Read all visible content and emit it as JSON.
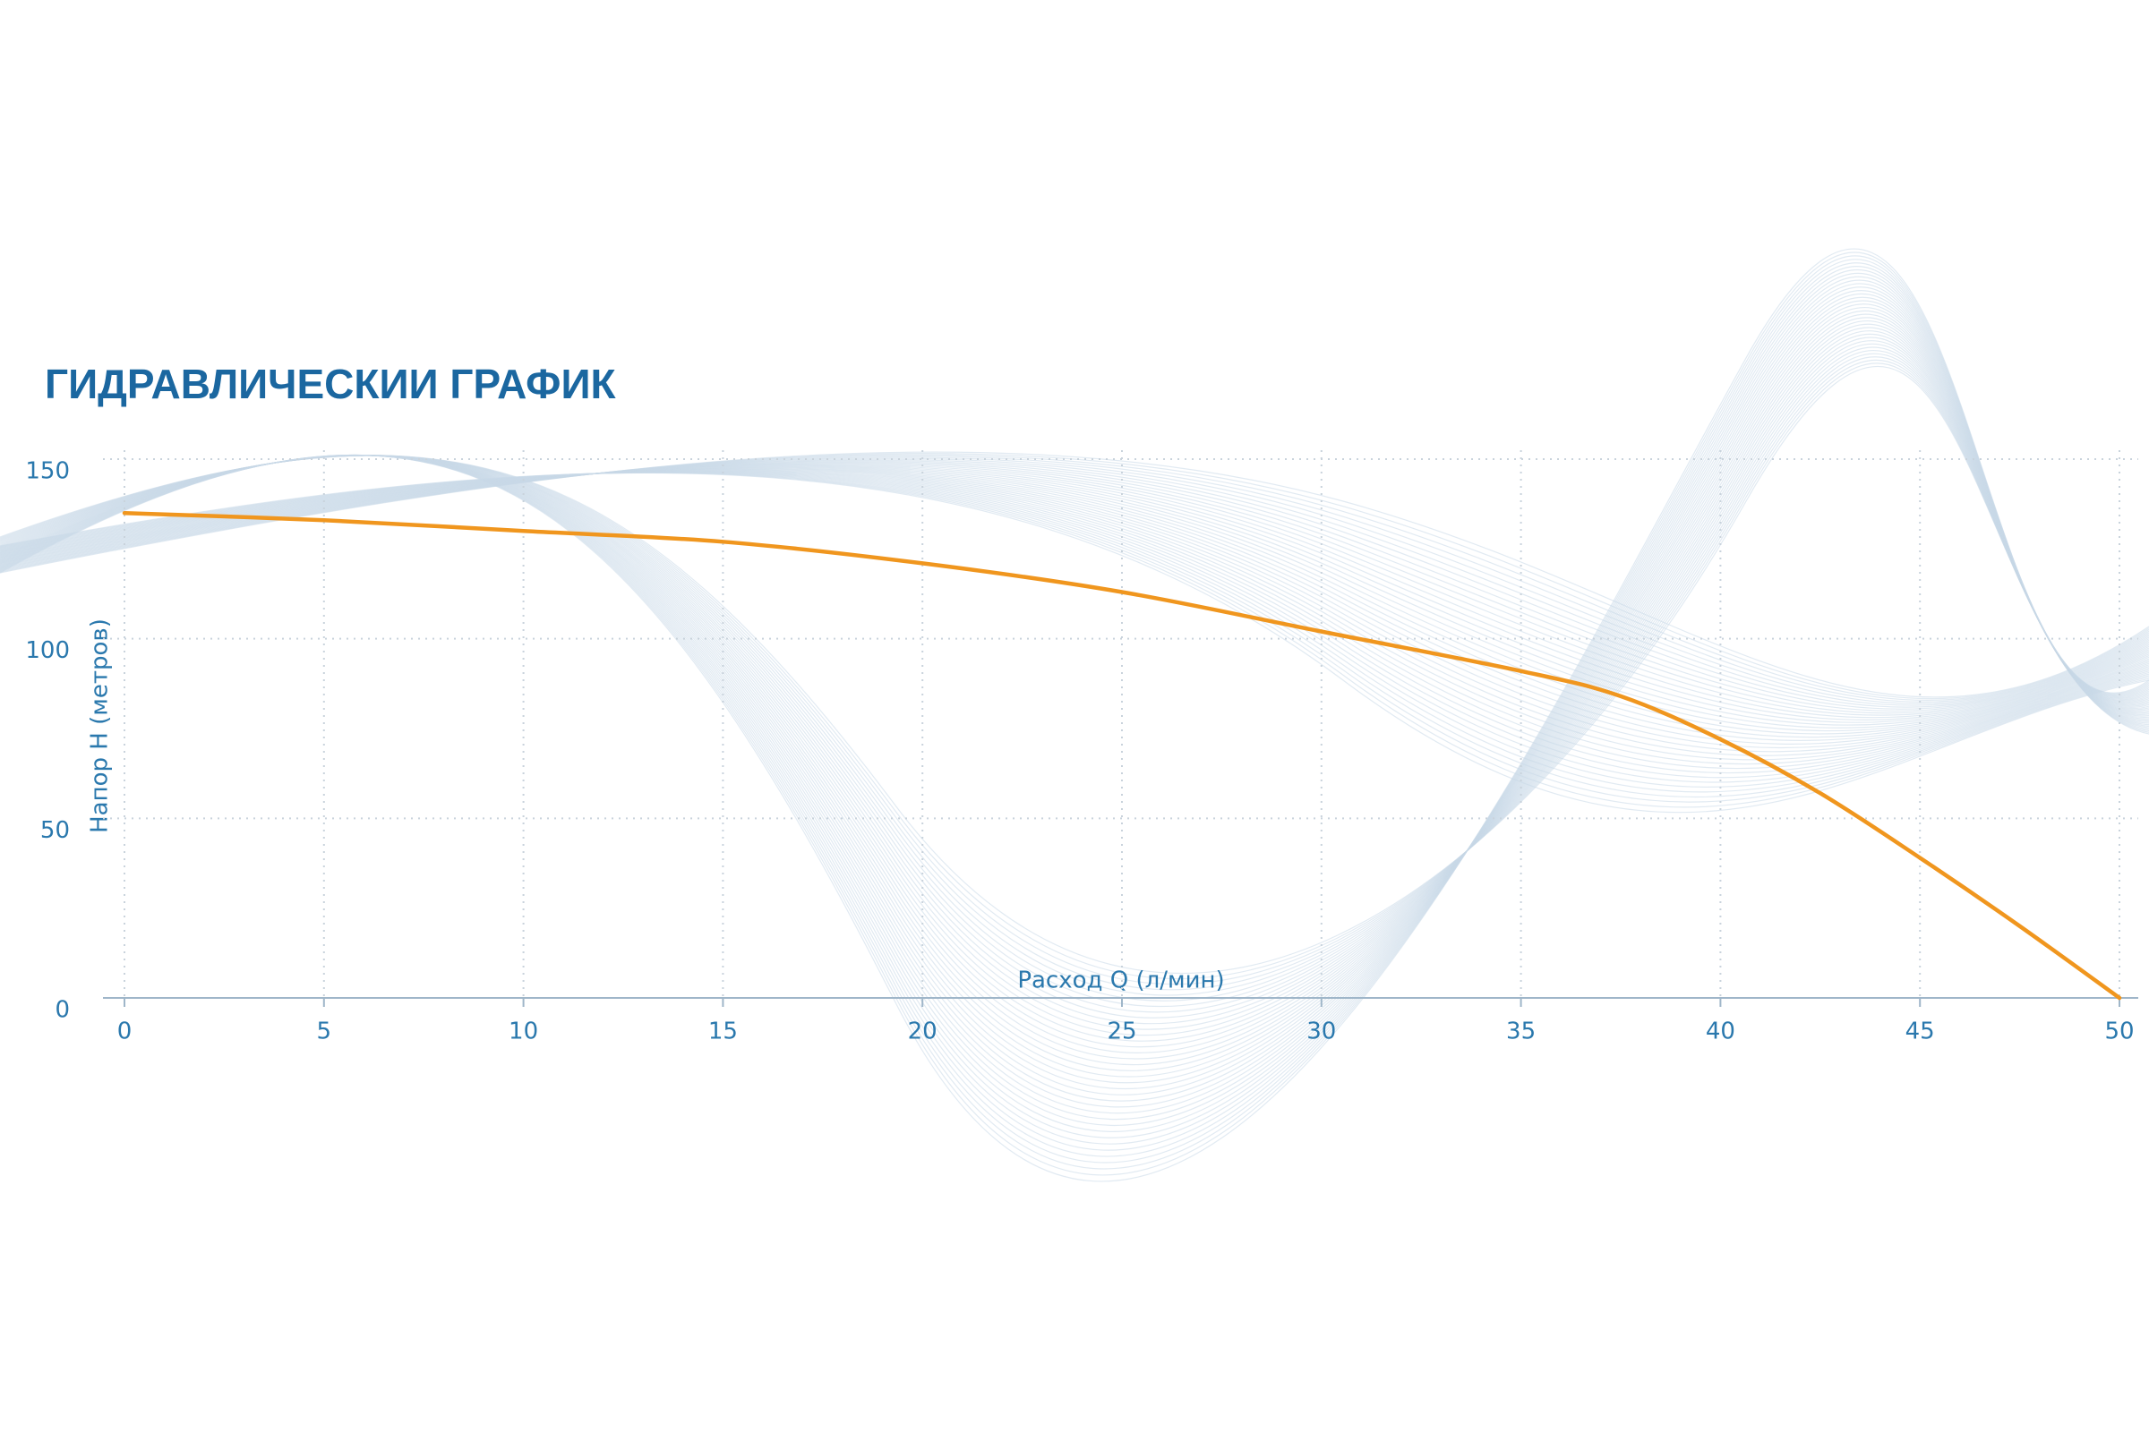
{
  "chart_data": {
    "type": "line",
    "title": "ГИДРАВЛИЧЕСКИИ ГРАФИК",
    "x_label": "Расход Q (л/мин)",
    "y_label": "Напор H (метров)",
    "x": [
      0,
      5,
      10,
      15,
      20,
      25,
      30,
      35,
      37.5,
      40,
      42.5,
      45,
      47.5,
      50
    ],
    "series": [
      {
        "color": "#f0961e",
        "values": [
          135,
          133,
          130,
          127,
          121,
          113,
          102,
          91,
          84,
          72,
          57,
          39,
          20,
          0
        ]
      }
    ],
    "xlim": [
      0,
      50
    ],
    "xticks": [
      0,
      5,
      10,
      15,
      20,
      25,
      30,
      35,
      40,
      45,
      50
    ],
    "ylim": [
      0,
      150
    ],
    "yticks": [
      0,
      50,
      100,
      150
    ],
    "grid": true
  }
}
